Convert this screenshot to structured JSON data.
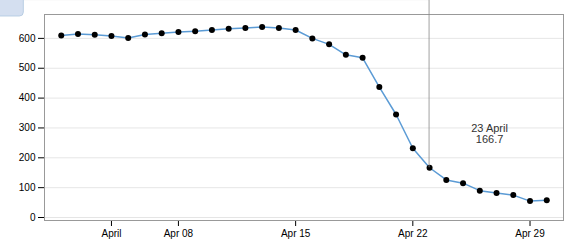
{
  "chart_data": {
    "type": "line",
    "x": [
      1,
      2,
      3,
      4,
      5,
      6,
      7,
      8,
      9,
      10,
      11,
      12,
      13,
      14,
      15,
      16,
      17,
      18,
      19,
      20,
      21,
      22,
      23,
      24,
      25,
      26,
      27,
      28,
      29,
      30
    ],
    "values": [
      610,
      615,
      612,
      608,
      601,
      613,
      617,
      621,
      624,
      628,
      632,
      635,
      638,
      635,
      628,
      600,
      580,
      545,
      535,
      437,
      345,
      232,
      166.7,
      126,
      115,
      90,
      82,
      75,
      55,
      58
    ],
    "color": "#5b9bd5",
    "marker": "circle",
    "xlim": [
      0,
      31
    ],
    "xticks": [
      {
        "value": 4,
        "label": "April"
      },
      {
        "value": 8,
        "label": "Apr 08"
      },
      {
        "value": 15,
        "label": "Apr 15"
      },
      {
        "value": 22,
        "label": "Apr 22"
      },
      {
        "value": 29,
        "label": "Apr 29"
      }
    ],
    "ylim": [
      -10,
      680
    ],
    "yticks": [
      0,
      100,
      200,
      300,
      400,
      500,
      600
    ],
    "grid": true,
    "annotations": [
      {
        "text": "23 April\n166.7",
        "x": 23,
        "y": 166.7
      }
    ]
  }
}
